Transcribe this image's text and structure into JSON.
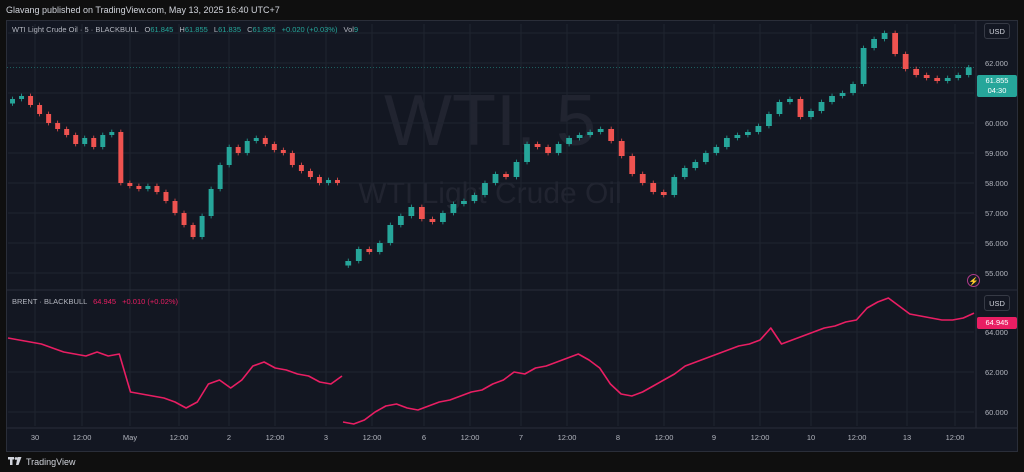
{
  "header": {
    "publish_line": "Glavang published on TradingView.com, May 13, 2025 16:40 UTC+7"
  },
  "top_pane": {
    "symbol_label": "WTI Light Crude Oil · 5 · BLACKBULL",
    "o_label": "O",
    "o_value": "61.845",
    "h_label": "H",
    "h_value": "61.855",
    "l_label": "L",
    "l_value": "61.835",
    "c_label": "C",
    "c_value": "61.855",
    "change": "+0.020 (+0.03%)",
    "vol_label": "Vol",
    "vol_value": "9",
    "currency_button": "USD",
    "last_price": "61.855",
    "countdown": "04:30",
    "watermark_big": "WTI, 5",
    "watermark_sub": "WTI Light Crude Oil"
  },
  "bottom_pane": {
    "symbol_label": "BRENT · BLACKBULL",
    "value": "64.945",
    "change": "+0.010 (+0.02%)",
    "currency_button": "USD",
    "last_price": "64.945"
  },
  "footer": {
    "brand": "TradingView"
  },
  "colors": {
    "up": "#26a69a",
    "down": "#ef5350",
    "brent_line": "#e91e63",
    "background": "#131722",
    "grid": "#1f2430",
    "axis_text": "#b2b5be"
  },
  "chart_data": [
    {
      "type": "candlestick",
      "title": "WTI Light Crude Oil · 5 · BLACKBULL",
      "ylim": [
        54.5,
        63.3
      ],
      "y_ticks": [
        "63.000",
        "62.000",
        "61.000",
        "60.000",
        "59.000",
        "58.000",
        "57.000",
        "56.000",
        "55.000"
      ],
      "x_tick_labels": [
        "30",
        "12:00",
        "May",
        "12:00",
        "2",
        "12:00",
        "3",
        "12:00",
        "6",
        "12:00",
        "7",
        "12:00",
        "8",
        "12:00",
        "9",
        "12:00",
        "10",
        "12:00",
        "13",
        "12:00"
      ],
      "last_price": 61.855,
      "segments": [
        {
          "session": "Apr 30 – May 2",
          "close": [
            60.8,
            60.9,
            60.6,
            60.3,
            60.0,
            59.8,
            59.6,
            59.3,
            59.5,
            59.2,
            59.6,
            59.7,
            58.0,
            57.9,
            57.8,
            57.9,
            57.7,
            57.4,
            57.0,
            56.6,
            56.2,
            56.9,
            57.8,
            58.6,
            59.2,
            59.0,
            59.4,
            59.5,
            59.3,
            59.1,
            59.0,
            58.6,
            58.4,
            58.2,
            58.0,
            58.1,
            58.0
          ]
        },
        {
          "session": "May 5 – May 13",
          "close": [
            55.4,
            55.8,
            55.7,
            56.0,
            56.6,
            56.9,
            57.2,
            56.8,
            56.7,
            57.0,
            57.3,
            57.4,
            57.6,
            58.0,
            58.3,
            58.2,
            58.7,
            59.3,
            59.2,
            59.0,
            59.3,
            59.5,
            59.6,
            59.7,
            59.8,
            59.4,
            58.9,
            58.3,
            58.0,
            57.7,
            57.6,
            58.2,
            58.5,
            58.7,
            59.0,
            59.2,
            59.5,
            59.6,
            59.7,
            59.9,
            60.3,
            60.7,
            60.8,
            60.2,
            60.4,
            60.7,
            60.9,
            61.0,
            61.3,
            62.5,
            62.8,
            63.0,
            62.3,
            61.8,
            61.6,
            61.5,
            61.4,
            61.5,
            61.6,
            61.855
          ]
        }
      ]
    },
    {
      "type": "line",
      "title": "BRENT · BLACKBULL",
      "ylim": [
        59.3,
        66.0
      ],
      "y_ticks": [
        "64.000",
        "62.000",
        "60.000"
      ],
      "last_price": 64.945,
      "segments": [
        {
          "session": "Apr 30 – May 2",
          "values": [
            63.7,
            63.6,
            63.5,
            63.4,
            63.2,
            63.0,
            62.9,
            62.8,
            63.0,
            62.8,
            62.9,
            61.0,
            60.9,
            60.8,
            60.7,
            60.5,
            60.2,
            60.5,
            61.4,
            61.6,
            61.2,
            61.6,
            62.3,
            62.5,
            62.2,
            62.1,
            61.9,
            61.8,
            61.5,
            61.4,
            61.8
          ]
        },
        {
          "session": "May 5 – May 13",
          "values": [
            59.5,
            59.4,
            59.6,
            60.0,
            60.3,
            60.4,
            60.2,
            60.1,
            60.3,
            60.5,
            60.6,
            60.8,
            61.0,
            61.1,
            61.4,
            61.6,
            62.0,
            61.9,
            62.2,
            62.3,
            62.5,
            62.7,
            62.9,
            62.6,
            62.2,
            61.4,
            60.9,
            60.8,
            61.0,
            61.3,
            61.6,
            61.9,
            62.3,
            62.5,
            62.7,
            62.9,
            63.1,
            63.3,
            63.4,
            63.6,
            64.2,
            63.4,
            63.6,
            63.8,
            64.0,
            64.2,
            64.3,
            64.5,
            64.6,
            65.2,
            65.5,
            65.7,
            65.3,
            64.9,
            64.8,
            64.7,
            64.6,
            64.6,
            64.7,
            64.945
          ]
        }
      ]
    }
  ]
}
